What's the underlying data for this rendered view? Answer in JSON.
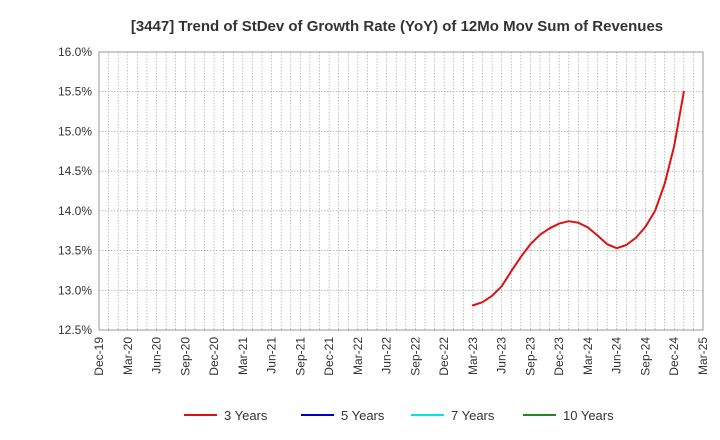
{
  "chart_data": {
    "type": "line",
    "title": "[3447]  Trend of StDev of Growth Rate (YoY) of 12Mo Mov Sum of Revenues",
    "xlabel": "",
    "ylabel": "",
    "ylim": [
      12.5,
      16.0
    ],
    "yticks": [
      "12.5%",
      "13.0%",
      "13.5%",
      "14.0%",
      "14.5%",
      "15.0%",
      "15.5%",
      "16.0%"
    ],
    "ytick_values": [
      12.5,
      13.0,
      13.5,
      14.0,
      14.5,
      15.0,
      15.5,
      16.0
    ],
    "xticks": [
      "Dec-19",
      "Mar-20",
      "Jun-20",
      "Sep-20",
      "Dec-20",
      "Mar-21",
      "Jun-21",
      "Sep-21",
      "Dec-21",
      "Mar-22",
      "Jun-22",
      "Sep-22",
      "Dec-22",
      "Mar-23",
      "Jun-23",
      "Sep-23",
      "Dec-23",
      "Mar-24",
      "Jun-24",
      "Sep-24",
      "Dec-24",
      "Mar-25"
    ],
    "x_months_total": 63,
    "grid": true,
    "legend_position": "bottom",
    "series": [
      {
        "name": "3 Years",
        "color": "#dd1111",
        "start_month_index": 39,
        "values": [
          12.81,
          12.85,
          12.93,
          13.05,
          13.24,
          13.42,
          13.58,
          13.7,
          13.78,
          13.84,
          13.87,
          13.85,
          13.79,
          13.69,
          13.58,
          13.53,
          13.57,
          13.66,
          13.8,
          14.0,
          14.34,
          14.82,
          15.5
        ]
      },
      {
        "name": "5 Years",
        "color": "#0000cc",
        "start_month_index": 0,
        "values": []
      },
      {
        "name": "7 Years",
        "color": "#00e5e5",
        "start_month_index": 0,
        "values": []
      },
      {
        "name": "10 Years",
        "color": "#228822",
        "start_month_index": 0,
        "values": []
      }
    ]
  }
}
